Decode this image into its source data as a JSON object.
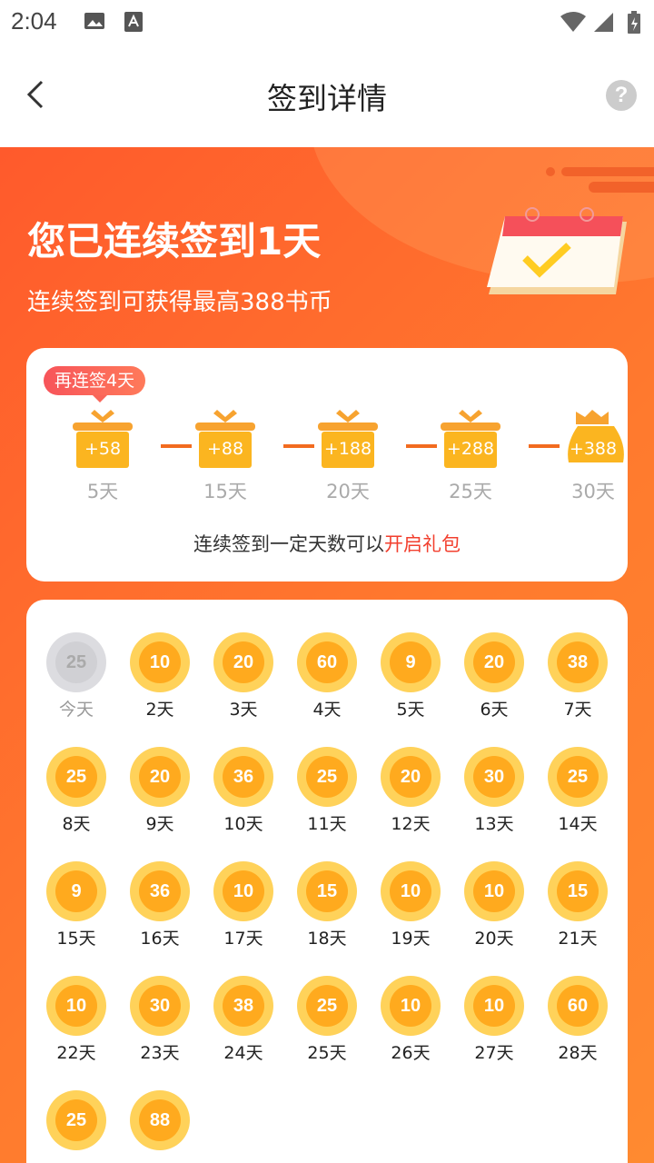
{
  "status": {
    "time": "2:04"
  },
  "header": {
    "title": "签到详情",
    "help": "?"
  },
  "hero": {
    "headline": "您已连续签到1天",
    "subline": "连续签到可获得最高388书币"
  },
  "rewards": {
    "tip": "再连签4天",
    "items": [
      {
        "amount": "+58",
        "days": "5天",
        "icon": "gift"
      },
      {
        "amount": "+88",
        "days": "15天",
        "icon": "gift"
      },
      {
        "amount": "+188",
        "days": "20天",
        "icon": "gift"
      },
      {
        "amount": "+288",
        "days": "25天",
        "icon": "gift"
      },
      {
        "amount": "+388",
        "days": "30天",
        "icon": "money-bag"
      }
    ],
    "note_prefix": "连续签到一定天数可以",
    "note_highlight": "开启礼包"
  },
  "days": [
    {
      "v": "25",
      "l": "今天"
    },
    {
      "v": "10",
      "l": "2天"
    },
    {
      "v": "20",
      "l": "3天"
    },
    {
      "v": "60",
      "l": "4天"
    },
    {
      "v": "9",
      "l": "5天"
    },
    {
      "v": "20",
      "l": "6天"
    },
    {
      "v": "38",
      "l": "7天"
    },
    {
      "v": "25",
      "l": "8天"
    },
    {
      "v": "20",
      "l": "9天"
    },
    {
      "v": "36",
      "l": "10天"
    },
    {
      "v": "25",
      "l": "11天"
    },
    {
      "v": "20",
      "l": "12天"
    },
    {
      "v": "30",
      "l": "13天"
    },
    {
      "v": "25",
      "l": "14天"
    },
    {
      "v": "9",
      "l": "15天"
    },
    {
      "v": "36",
      "l": "16天"
    },
    {
      "v": "10",
      "l": "17天"
    },
    {
      "v": "15",
      "l": "18天"
    },
    {
      "v": "10",
      "l": "19天"
    },
    {
      "v": "10",
      "l": "20天"
    },
    {
      "v": "15",
      "l": "21天"
    },
    {
      "v": "10",
      "l": "22天"
    },
    {
      "v": "30",
      "l": "23天"
    },
    {
      "v": "38",
      "l": "24天"
    },
    {
      "v": "25",
      "l": "25天"
    },
    {
      "v": "10",
      "l": "26天"
    },
    {
      "v": "10",
      "l": "27天"
    },
    {
      "v": "60",
      "l": "28天"
    },
    {
      "v": "25",
      "l": ""
    },
    {
      "v": "88",
      "l": ""
    }
  ],
  "colors": {
    "accent": "#ff6a2c",
    "coin": "#ffaa1e",
    "highlight": "#f23f2e"
  }
}
